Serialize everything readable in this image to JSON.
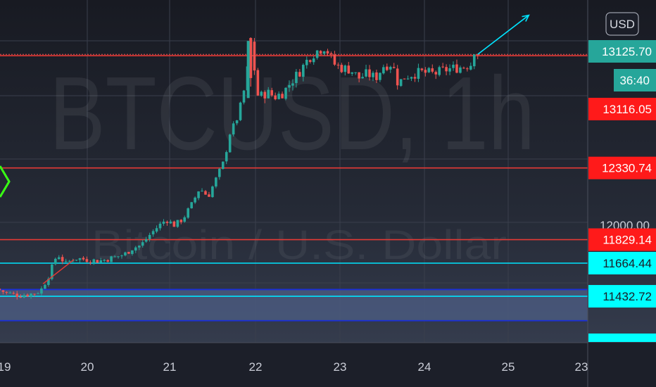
{
  "currency_button": {
    "label": "USD"
  },
  "watermark": {
    "symbol": "BTCUSD, 1h",
    "description": "Bitcoin / U.S. Dollar"
  },
  "colors": {
    "up": "#26a69a",
    "down": "#ef5350",
    "red_line": "#e53935",
    "cyan_line": "#00e5ff",
    "blue_line": "#1a2fd6",
    "red_tag": "#ff1a1a",
    "teal_tag": "#26a69a",
    "cyan_tag": "#00ffff"
  },
  "chart_data": {
    "type": "candlestick",
    "symbol": "BTCUSD",
    "interval": "1h",
    "currency": "USD",
    "x_ticks": [
      "19",
      "20",
      "21",
      "22",
      "23",
      "24",
      "25",
      "23"
    ],
    "y_ticks": [
      "12000.00"
    ],
    "ylim": [
      11300,
      13260
    ],
    "last_price": {
      "value": "13125.70",
      "countdown": "36:40"
    },
    "horizontal_levels": [
      {
        "value": 13116.05,
        "label": "13116.05",
        "style": "red"
      },
      {
        "value": 12330.74,
        "label": "12330.74",
        "style": "red"
      },
      {
        "value": 11829.14,
        "label": "11829.14",
        "style": "red"
      },
      {
        "value": 11664.44,
        "label": "11664.44",
        "style": "cyan"
      },
      {
        "value": 11432.72,
        "label": "11432.72",
        "style": "cyan"
      }
    ],
    "blue_levels": [
      11480,
      11262
    ],
    "shaded_zone": [
      11262,
      11480
    ],
    "price_path": [
      [
        18.92,
        11485
      ],
      [
        19.05,
        11455
      ],
      [
        19.2,
        11440
      ],
      [
        19.35,
        11450
      ],
      [
        19.45,
        11470
      ],
      [
        19.55,
        11580
      ],
      [
        19.65,
        11730
      ],
      [
        19.75,
        11660
      ],
      [
        19.85,
        11700
      ],
      [
        20.0,
        11690
      ],
      [
        20.15,
        11680
      ],
      [
        20.3,
        11700
      ],
      [
        20.45,
        11725
      ],
      [
        20.55,
        11770
      ],
      [
        20.65,
        11790
      ],
      [
        20.75,
        11860
      ],
      [
        20.85,
        11920
      ],
      [
        20.95,
        11970
      ],
      [
        21.05,
        11930
      ],
      [
        21.15,
        11975
      ],
      [
        21.25,
        12070
      ],
      [
        21.35,
        12190
      ],
      [
        21.45,
        12130
      ],
      [
        21.55,
        12260
      ],
      [
        21.65,
        12390
      ],
      [
        21.7,
        12560
      ],
      [
        21.8,
        12680
      ],
      [
        21.9,
        12920
      ],
      [
        21.96,
        13210
      ],
      [
        22.05,
        12820
      ],
      [
        22.15,
        12860
      ],
      [
        22.25,
        12830
      ],
      [
        22.35,
        12860
      ],
      [
        22.45,
        12940
      ],
      [
        22.55,
        13010
      ],
      [
        22.65,
        13100
      ],
      [
        22.75,
        13150
      ],
      [
        22.85,
        13180
      ],
      [
        22.95,
        13060
      ],
      [
        23.05,
        13030
      ],
      [
        23.15,
        13020
      ],
      [
        23.25,
        12960
      ],
      [
        23.35,
        12990
      ],
      [
        23.45,
        12960
      ],
      [
        23.55,
        13050
      ],
      [
        23.65,
        13060
      ],
      [
        23.72,
        12920
      ],
      [
        23.8,
        12970
      ],
      [
        23.9,
        12990
      ],
      [
        24.0,
        13000
      ],
      [
        24.15,
        12990
      ],
      [
        24.3,
        13020
      ],
      [
        24.4,
        13030
      ],
      [
        24.5,
        13040
      ],
      [
        24.6,
        13060
      ],
      [
        24.67,
        13125.7
      ]
    ],
    "projection_arrow": [
      [
        24.67,
        13125.7
      ],
      [
        25.28,
        13400
      ]
    ],
    "annotation_line": [
      [
        19.48,
        11520
      ],
      [
        19.85,
        11690
      ]
    ]
  }
}
